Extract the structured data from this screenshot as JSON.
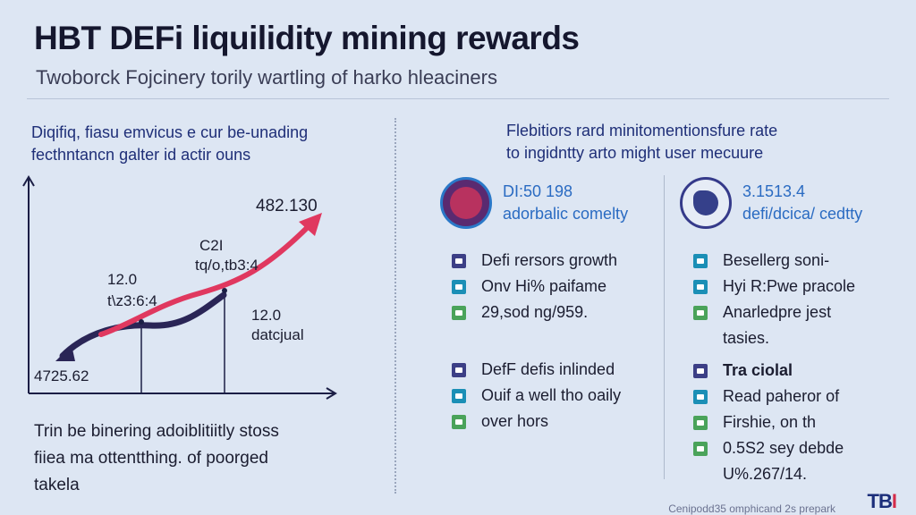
{
  "header": {
    "title": "HBT DEFi liquilidity mining rewards",
    "subtitle": "Twoborck Fojcinery torily wartling of harko hleaciners"
  },
  "left": {
    "heading_line1": "Diqifiq, fiasu emvicus e cur be-unading",
    "heading_line2": "fecthntancn galter id actir ouns",
    "labels": {
      "peak_value": "482.130",
      "mid_top_a": "C2I",
      "mid_top_b": "tq/o,tb3:4",
      "left_mid_a": "12.0",
      "left_mid_b": "t\\z3:6:4",
      "right_mid_a": "12.0",
      "right_mid_b": "datcjual",
      "bottom_left": "4725.62"
    },
    "note_line1": "Trin be binering adoiblitiitly stoss",
    "note_line2": "fiiea ma ottentthing. of poorged",
    "note_line3": "takela"
  },
  "right": {
    "heading_line1": "Flebitiors rard minitomentionsfure rate",
    "heading_line2": "to ingidntty arto might user mecuure",
    "stats": [
      {
        "value": "DI:50 198",
        "label": "adorbalic comelty",
        "icon": "coin-icon"
      },
      {
        "value": "3.1513.4",
        "label": "defi/dcica/ cedtty",
        "icon": "wallet-icon"
      }
    ],
    "list_left_a": [
      {
        "text": "Defi rersors growth",
        "color": "#3c3f86"
      },
      {
        "text": "Onv Hi% paifame",
        "color": "#1b8fb6"
      },
      {
        "text": "29,sod ng/959.",
        "color": "#4aa35a"
      }
    ],
    "list_left_b": [
      {
        "text": "DefF defis inlinded",
        "color": "#3c3f86"
      },
      {
        "text": "Ouif a well tho oaily",
        "color": "#1b8fb6"
      },
      {
        "text": "over hors",
        "color": "#4aa35a"
      }
    ],
    "list_right_a": [
      {
        "text": "Besellerg soni-",
        "color": "#1b8fb6"
      },
      {
        "text": "Hyi R:Pwe pracole",
        "color": "#1b8fb6"
      },
      {
        "text": "Anarledpre jest",
        "color": "#4aa35a"
      },
      {
        "text": "tasies.",
        "color": ""
      }
    ],
    "list_right_b": [
      {
        "text": "Tra ciolal",
        "color": "#3c3f86",
        "bold": true
      },
      {
        "text": "Read paheror of",
        "color": "#1b8fb6"
      },
      {
        "text": "Firshie, on th",
        "color": "#4aa35a"
      },
      {
        "text": "0.5S2 sey debde",
        "color": "#4aa35a"
      },
      {
        "text": "U%.267/14.",
        "color": ""
      }
    ]
  },
  "footer": {
    "credit": "Cenipodd35 omphicand 2s prepark",
    "logo_main": "TB",
    "logo_accent": "I"
  }
}
